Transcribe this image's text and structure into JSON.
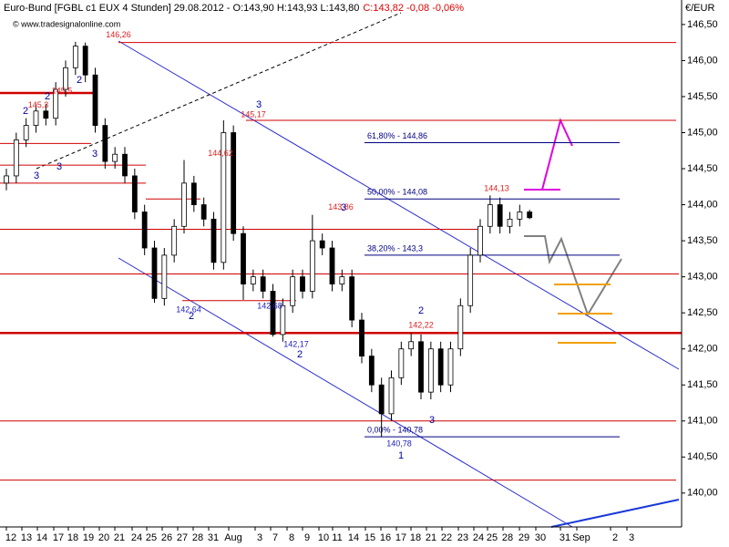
{
  "chart_data": {
    "type": "candlestick",
    "title": "Euro-Bund [FGBL c1 EUX  4 Stunden] 29.08.2012 - O:143,90 H:143,93 L:143,80",
    "last_quote": "C:143,82 -0,08 -0,06%",
    "last_quote_color": "#e00000",
    "watermark": "© www.tradesignalonline.com",
    "y_axis_label": "€/EUR",
    "ylim": [
      139.53,
      146.84
    ],
    "yticks": [
      {
        "value": 140.0,
        "label": "140,00"
      },
      {
        "value": 140.5,
        "label": "140,50"
      },
      {
        "value": 141.0,
        "label": "141,00"
      },
      {
        "value": 141.5,
        "label": "141,50"
      },
      {
        "value": 142.0,
        "label": "142,00"
      },
      {
        "value": 142.5,
        "label": "142,50"
      },
      {
        "value": 143.0,
        "label": "143,00"
      },
      {
        "value": 143.5,
        "label": "143,50"
      },
      {
        "value": 144.0,
        "label": "144,00"
      },
      {
        "value": 144.5,
        "label": "144,50"
      },
      {
        "value": 145.0,
        "label": "145,00"
      },
      {
        "value": 145.5,
        "label": "145,50"
      },
      {
        "value": 146.0,
        "label": "146,00"
      },
      {
        "value": 146.5,
        "label": "146,50"
      }
    ],
    "date_labels": [
      "12",
      "13",
      "14",
      "17",
      "18",
      "19",
      "20",
      "21",
      "24",
      "25",
      "26",
      "27",
      "28",
      "31",
      "Aug",
      "3",
      "7",
      "8",
      "9",
      "10",
      "11",
      "14",
      "15",
      "16",
      "17",
      "18",
      "21",
      "22",
      "23",
      "24",
      "25",
      "28",
      "29",
      "30",
      "31",
      "Sep",
      "2",
      "3"
    ],
    "up_color": "#ffffff",
    "down_color": "#000000",
    "open": [
      144.3,
      144.4,
      144.9,
      145.1,
      145.3,
      145.2,
      145.6,
      145.9,
      146.2,
      145.8,
      145.1,
      144.6,
      144.7,
      144.4,
      143.9,
      143.4,
      142.7,
      143.3,
      143.7,
      144.3,
      144.0,
      143.8,
      143.2,
      145.0,
      143.6,
      142.9,
      143.0,
      142.8,
      142.2,
      142.6,
      143.0,
      142.8,
      143.5,
      143.4,
      142.9,
      143.0,
      142.4,
      141.9,
      141.5,
      141.1,
      141.6,
      142.0,
      142.1,
      141.4,
      142.0,
      141.5,
      142.0,
      142.6,
      143.3,
      143.7,
      144.0,
      143.7,
      143.8,
      143.9
    ],
    "high": [
      144.5,
      145.0,
      145.2,
      145.4,
      145.4,
      145.7,
      146.0,
      146.26,
      146.25,
      145.9,
      145.2,
      144.8,
      144.8,
      144.5,
      144.0,
      143.5,
      143.4,
      143.8,
      144.62,
      144.4,
      144.1,
      143.9,
      145.17,
      145.1,
      143.7,
      143.1,
      143.1,
      142.9,
      142.7,
      143.1,
      143.1,
      143.86,
      143.6,
      143.5,
      143.1,
      143.1,
      142.5,
      142.0,
      141.6,
      141.7,
      142.1,
      142.22,
      142.2,
      142.1,
      142.1,
      142.1,
      142.7,
      143.4,
      143.8,
      144.13,
      144.1,
      143.9,
      144.0,
      143.93
    ],
    "low": [
      144.2,
      144.3,
      144.8,
      145.0,
      145.1,
      145.1,
      145.5,
      145.8,
      145.7,
      145.0,
      144.5,
      144.5,
      144.3,
      143.8,
      143.3,
      142.64,
      142.6,
      143.2,
      143.6,
      143.9,
      143.7,
      143.1,
      143.1,
      143.5,
      142.68,
      142.8,
      142.7,
      142.17,
      142.1,
      142.5,
      142.7,
      142.7,
      143.3,
      142.8,
      142.8,
      142.3,
      141.8,
      141.4,
      140.78,
      141.0,
      141.5,
      141.9,
      141.3,
      141.3,
      141.4,
      141.4,
      141.9,
      142.5,
      143.2,
      143.6,
      143.6,
      143.6,
      143.7,
      143.8
    ],
    "close": [
      144.4,
      144.9,
      145.1,
      145.3,
      145.2,
      145.6,
      145.9,
      146.2,
      145.8,
      145.1,
      144.6,
      144.7,
      144.4,
      143.9,
      143.4,
      142.7,
      143.3,
      143.7,
      144.3,
      144.0,
      143.8,
      143.2,
      145.0,
      143.6,
      142.9,
      143.0,
      142.8,
      142.2,
      142.6,
      143.0,
      142.8,
      143.5,
      143.4,
      142.9,
      143.0,
      142.4,
      141.9,
      141.5,
      141.1,
      141.6,
      142.0,
      142.1,
      141.4,
      142.0,
      141.5,
      142.0,
      142.6,
      143.3,
      143.7,
      144.0,
      143.7,
      143.8,
      143.9,
      143.82
    ],
    "levels": [
      146.25,
      145.17,
      143.66,
      143.04,
      142.22,
      141.0,
      140.18,
      145.55,
      144.3,
      144.08,
      142.67,
      144.55,
      144.85
    ],
    "level_color": "#d00000",
    "fib_color": "#000080",
    "fib_levels": [
      {
        "value": 144.86,
        "label": "61,80% - 144,86"
      },
      {
        "value": 144.08,
        "label": "50,00% - 144,08"
      },
      {
        "value": 143.3,
        "label": "38,20% - 143,3"
      },
      {
        "value": 140.78,
        "label": "0,00% - 140,78"
      }
    ],
    "price_labels": [
      {
        "text": "146,26",
        "value": 146.26,
        "color": "#e02020"
      },
      {
        "text": "145,5",
        "value": 145.5,
        "color": "#e02020"
      },
      {
        "text": "145,3",
        "value": 145.3,
        "color": "#e02020"
      },
      {
        "text": "145,17",
        "value": 145.17,
        "color": "#e02020"
      },
      {
        "text": "144,62",
        "value": 144.62,
        "color": "#e02020"
      },
      {
        "text": "143,86",
        "value": 143.86,
        "color": "#e02020"
      },
      {
        "text": "142,22",
        "value": 142.22,
        "color": "#e02020"
      },
      {
        "text": "144,13",
        "value": 144.13,
        "color": "#e02020"
      },
      {
        "text": "142,64",
        "value": 142.64,
        "color": "#2020c0"
      },
      {
        "text": "142,68",
        "value": 142.68,
        "color": "#2020c0"
      },
      {
        "text": "142,17",
        "value": 142.17,
        "color": "#2020c0"
      },
      {
        "text": "140,78",
        "value": 140.78,
        "color": "#2020c0"
      }
    ],
    "wave_labels": [
      "3",
      "3",
      "3",
      "2",
      "2",
      "2",
      "3",
      "2",
      "2",
      "3",
      "2",
      "1",
      "3"
    ],
    "wave_color": "#0000a0"
  }
}
